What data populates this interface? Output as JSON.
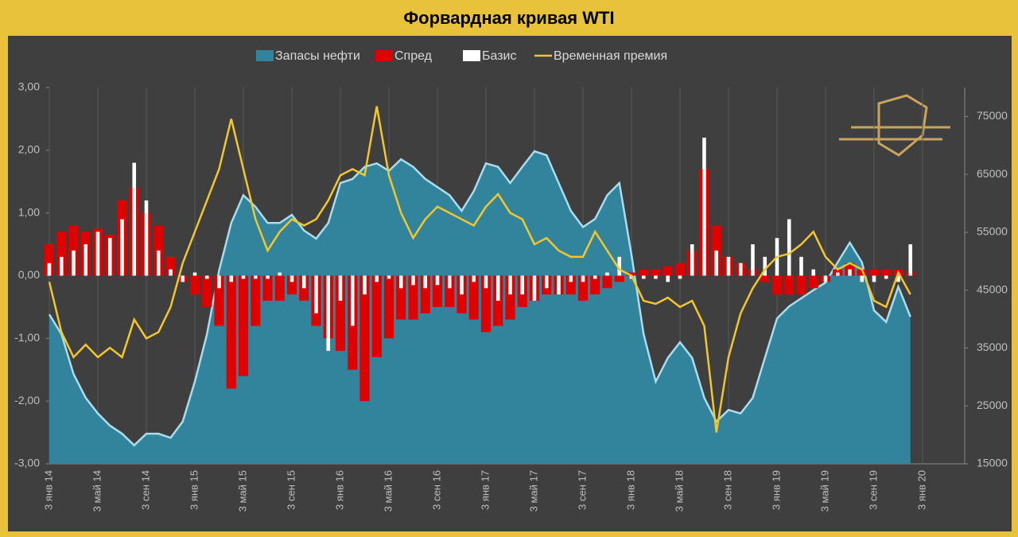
{
  "chart_data": {
    "type": "combo",
    "title": "Форвардная кривая WTI",
    "categories": [
      "3 янв 14",
      null,
      null,
      null,
      "3 май 14",
      null,
      null,
      null,
      "3 сен 14",
      null,
      null,
      null,
      "3 янв 15",
      null,
      null,
      null,
      "3 май 15",
      null,
      null,
      null,
      "3 сен 15",
      null,
      null,
      null,
      "3 янв 16",
      null,
      null,
      null,
      "3 май 16",
      null,
      null,
      null,
      "3 сен 16",
      null,
      null,
      null,
      "3 янв 17",
      null,
      null,
      null,
      "3 май 17",
      null,
      null,
      null,
      "3 сен 17",
      null,
      null,
      null,
      "3 янв 18",
      null,
      null,
      null,
      "3 май 18",
      null,
      null,
      null,
      "3 сен 18",
      null,
      null,
      null,
      "3 янв 19",
      null,
      null,
      null,
      "3 май 19",
      null,
      null,
      null,
      "3 сен 19",
      null,
      null,
      null,
      "3 янв 20"
    ],
    "series": [
      {
        "name": "Запасы нефти",
        "type": "area",
        "axis": "y2",
        "color": "#31849b",
        "edge": "#a8dcee",
        "values": [
          40800,
          37400,
          30500,
          26400,
          23700,
          21600,
          20200,
          18200,
          20200,
          20200,
          19500,
          22300,
          29200,
          37400,
          48400,
          56600,
          61400,
          59400,
          56600,
          56600,
          58000,
          55300,
          53900,
          56600,
          63500,
          64200,
          66300,
          66900,
          65600,
          67600,
          66300,
          64200,
          62800,
          61400,
          58700,
          62100,
          66900,
          66300,
          63500,
          66300,
          69000,
          68300,
          63500,
          58700,
          55900,
          57300,
          61400,
          63500,
          51100,
          37400,
          29200,
          33300,
          36000,
          33300,
          26400,
          22300,
          24300,
          23700,
          26400,
          33300,
          40100,
          42200,
          43600,
          45000,
          46300,
          49800,
          53200,
          49800,
          41500,
          39500,
          45600,
          40400,
          null
        ]
      },
      {
        "name": "Спред",
        "type": "bar",
        "color": "#e00000",
        "values": [
          0.5,
          0.7,
          0.8,
          0.7,
          0.75,
          0.65,
          1.2,
          1.4,
          1.0,
          0.8,
          0.3,
          -0.1,
          -0.3,
          -0.5,
          -0.8,
          -1.8,
          -1.6,
          -0.8,
          -0.4,
          -0.4,
          -0.3,
          -0.4,
          -0.8,
          -1.0,
          -1.2,
          -1.5,
          -2.0,
          -1.3,
          -1.0,
          -0.7,
          -0.7,
          -0.6,
          -0.5,
          -0.5,
          -0.6,
          -0.7,
          -0.9,
          -0.8,
          -0.7,
          -0.5,
          -0.4,
          -0.3,
          -0.3,
          -0.3,
          -0.4,
          -0.3,
          -0.2,
          -0.1,
          0.05,
          0.1,
          0.1,
          0.15,
          0.2,
          0.4,
          1.7,
          0.8,
          0.3,
          0.2,
          0.1,
          -0.1,
          -0.3,
          -0.3,
          -0.3,
          -0.2,
          -0.1,
          0.1,
          0.2,
          0.1,
          0.1,
          0.1,
          0.1,
          0.05,
          null
        ]
      },
      {
        "name": "Базис",
        "type": "bar",
        "color": "#ffffff",
        "values": [
          0.2,
          0.3,
          0.4,
          0.5,
          0.7,
          0.6,
          0.9,
          1.8,
          1.2,
          0.4,
          0.1,
          -0.1,
          0.05,
          -0.05,
          -0.2,
          -0.1,
          -0.05,
          -0.05,
          -0.05,
          0.05,
          -0.1,
          -0.2,
          -0.6,
          -1.2,
          -0.4,
          -0.8,
          -0.3,
          -0.1,
          -0.05,
          -0.2,
          -0.15,
          -0.2,
          -0.15,
          -0.2,
          -0.3,
          -0.1,
          -0.2,
          -0.4,
          -0.3,
          -0.3,
          -0.4,
          -0.2,
          -0.3,
          -0.1,
          -0.1,
          -0.05,
          0.05,
          0.3,
          -0.05,
          -0.05,
          -0.05,
          -0.1,
          -0.05,
          0.5,
          2.2,
          0.4,
          0.3,
          0.2,
          0.5,
          0.3,
          0.6,
          0.9,
          0.3,
          0.1,
          -0.1,
          0.05,
          0.1,
          -0.1,
          -0.1,
          -0.05,
          -0.1,
          0.5,
          null
        ]
      },
      {
        "name": "Временная премия",
        "type": "line",
        "color": "#f2c62c",
        "values": [
          -0.1,
          -0.9,
          -1.3,
          -1.1,
          -1.3,
          -1.15,
          -1.3,
          -0.7,
          -1.0,
          -0.9,
          -0.5,
          0.2,
          0.7,
          1.2,
          1.7,
          2.5,
          1.7,
          0.9,
          0.4,
          0.7,
          0.9,
          0.8,
          0.9,
          1.2,
          1.6,
          1.7,
          1.6,
          2.7,
          1.6,
          1.0,
          0.6,
          0.9,
          1.1,
          1.0,
          0.9,
          0.8,
          1.1,
          1.3,
          1.0,
          0.9,
          0.5,
          0.6,
          0.4,
          0.3,
          0.3,
          0.7,
          0.4,
          0.1,
          0.0,
          -0.4,
          -0.45,
          -0.35,
          -0.5,
          -0.4,
          -0.8,
          -2.5,
          -1.3,
          -0.6,
          -0.2,
          0.1,
          0.3,
          0.35,
          0.5,
          0.7,
          0.3,
          0.1,
          0.2,
          0.1,
          -0.4,
          -0.5,
          0.05,
          -0.3,
          null
        ]
      }
    ],
    "ylim": [
      -3,
      3
    ],
    "yticks": [
      {
        "value": -3,
        "label": "-3,00"
      },
      {
        "value": -2,
        "label": "-2,00"
      },
      {
        "value": -1,
        "label": "-1,00"
      },
      {
        "value": 0,
        "label": "0,00"
      },
      {
        "value": 1,
        "label": "1,00"
      },
      {
        "value": 2,
        "label": "2,00"
      },
      {
        "value": 3,
        "label": "3,00"
      }
    ],
    "y2lim": [
      15000,
      80000
    ],
    "y2ticks": [
      15000,
      25000,
      35000,
      45000,
      55000,
      65000,
      75000
    ],
    "grid": "x",
    "legend": "top"
  }
}
